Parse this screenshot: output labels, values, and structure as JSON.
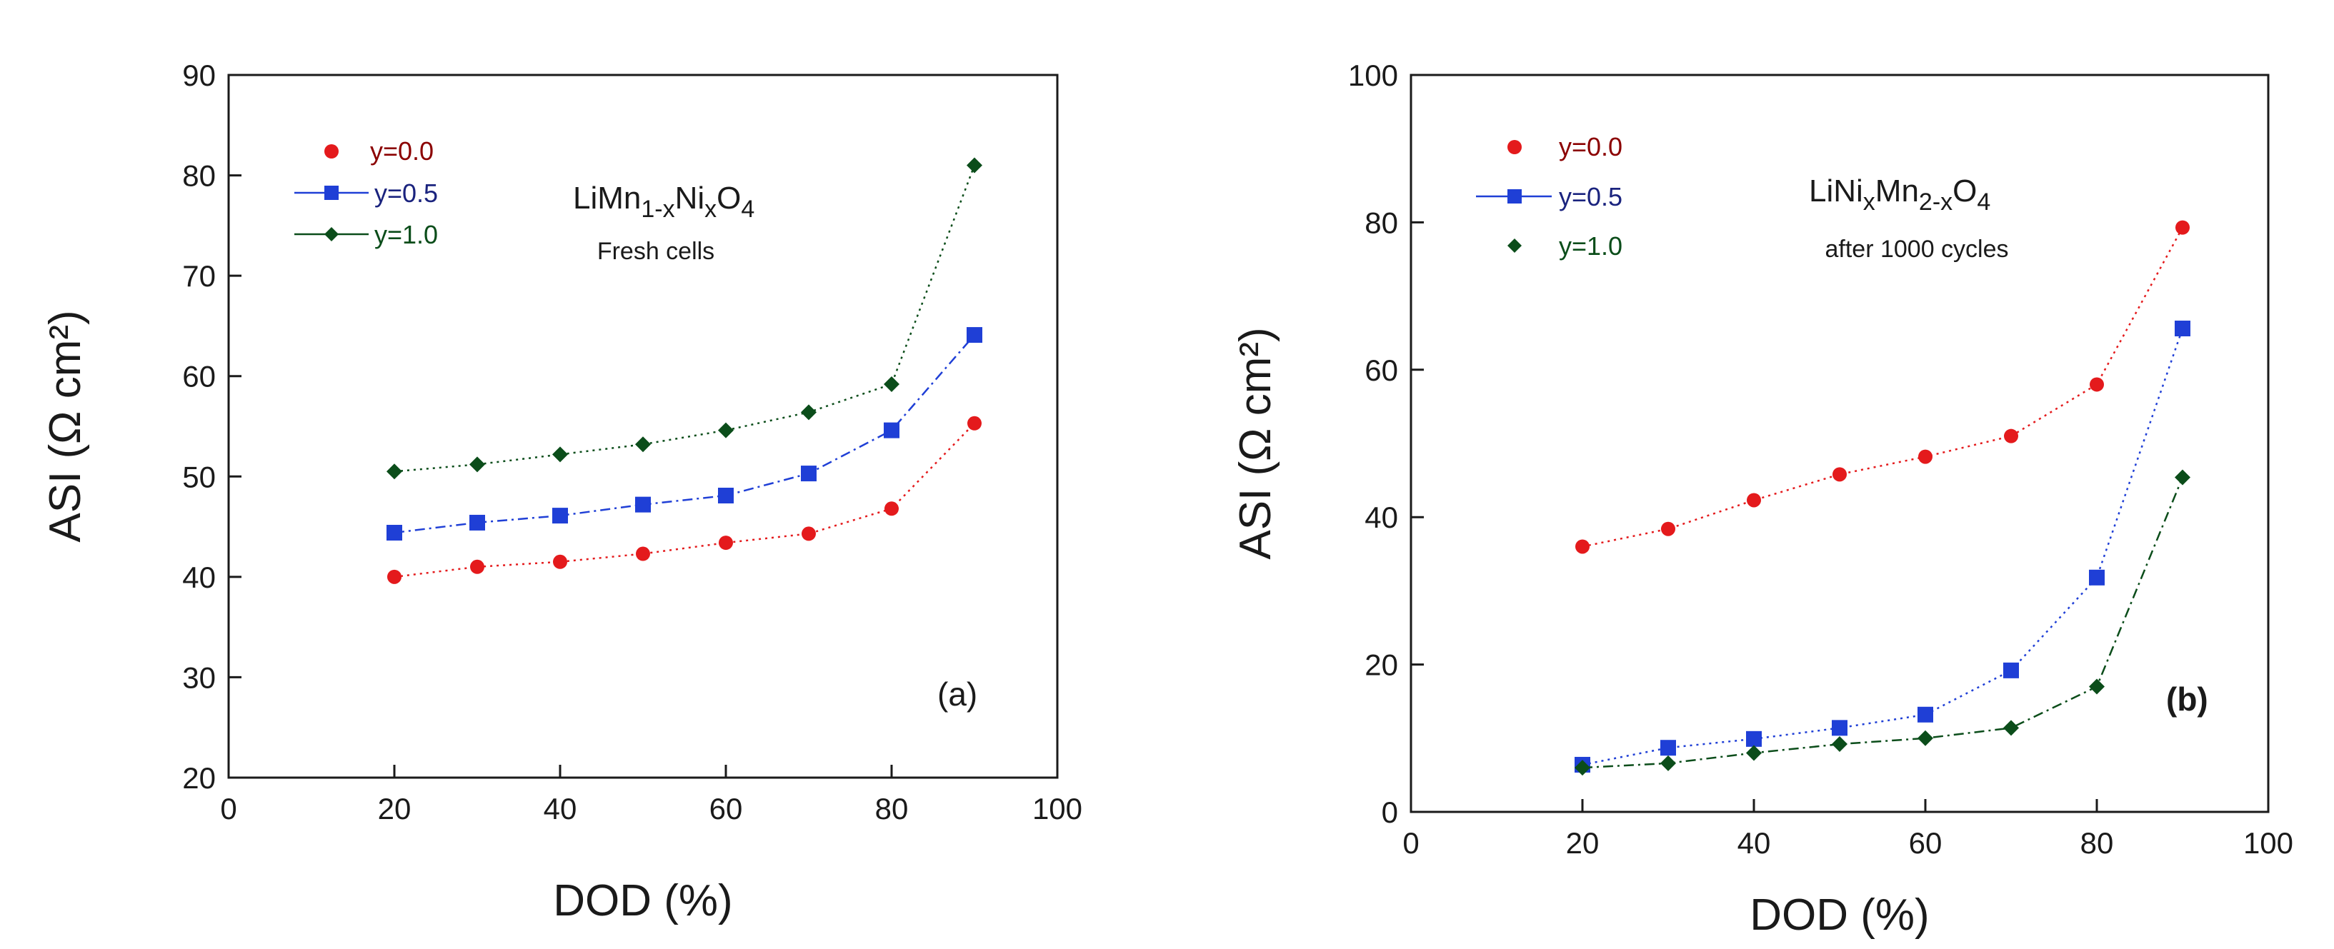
{
  "chart_data": [
    {
      "type": "line",
      "panel_label": "(a)",
      "annotation_title": "LiMn1-xNixO4",
      "annotation_subtitle": "Fresh cells",
      "xlabel": "DOD (%)",
      "ylabel": "ASI (Ω cm²)",
      "xlim": [
        0,
        100
      ],
      "ylim": [
        20,
        90
      ],
      "xticks": [
        0,
        20,
        40,
        60,
        80,
        100
      ],
      "yticks": [
        20,
        30,
        40,
        50,
        60,
        70,
        80,
        90
      ],
      "legend_position": "top-left",
      "x": [
        20,
        30,
        40,
        50,
        60,
        70,
        80,
        90
      ],
      "series": [
        {
          "name": "y=0.0",
          "marker": "circle",
          "color": "#e41a1c",
          "text_color": "#8b0000",
          "line_style": "dotted",
          "values": [
            40.0,
            41.0,
            41.5,
            42.3,
            43.4,
            44.3,
            46.8,
            55.3
          ]
        },
        {
          "name": "y=0.5",
          "marker": "square",
          "color": "#1f3fd6",
          "text_color": "#1a237e",
          "line_style": "dashdot",
          "values": [
            44.4,
            45.4,
            46.1,
            47.2,
            48.1,
            50.3,
            54.6,
            64.1
          ]
        },
        {
          "name": "y=1.0",
          "marker": "diamond",
          "color": "#0b4d1a",
          "text_color": "#0b4d1a",
          "line_style": "dotted",
          "values": [
            50.5,
            51.2,
            52.2,
            53.2,
            54.6,
            56.4,
            59.2,
            81.0
          ]
        }
      ]
    },
    {
      "type": "line",
      "panel_label": "(b)",
      "annotation_title": "LiNixMn2-xO4",
      "annotation_subtitle": "after 1000 cycles",
      "xlabel": "DOD (%)",
      "ylabel": "ASI (Ω cm²)",
      "xlim": [
        0,
        100
      ],
      "ylim": [
        0,
        100
      ],
      "xticks": [
        0,
        20,
        40,
        60,
        80,
        100
      ],
      "yticks": [
        0,
        20,
        40,
        60,
        80,
        100
      ],
      "legend_position": "top-left",
      "x": [
        20,
        30,
        40,
        50,
        60,
        70,
        80,
        90
      ],
      "series": [
        {
          "name": "y=0.0",
          "marker": "circle",
          "color": "#e41a1c",
          "text_color": "#8b0000",
          "line_style": "dotted",
          "values": [
            36.0,
            38.4,
            42.3,
            45.8,
            48.2,
            51.0,
            58.0,
            79.3
          ]
        },
        {
          "name": "y=0.5",
          "marker": "square",
          "color": "#1f3fd6",
          "text_color": "#1a237e",
          "line_style": "dotted",
          "values": [
            6.4,
            8.7,
            9.9,
            11.4,
            13.2,
            19.2,
            31.8,
            65.6
          ]
        },
        {
          "name": "y=1.0",
          "marker": "diamond",
          "color": "#0b4d1a",
          "text_color": "#0b4d1a",
          "line_style": "dashdot",
          "values": [
            6.0,
            6.6,
            8.0,
            9.2,
            10.0,
            11.4,
            17.0,
            45.4
          ]
        }
      ]
    }
  ]
}
